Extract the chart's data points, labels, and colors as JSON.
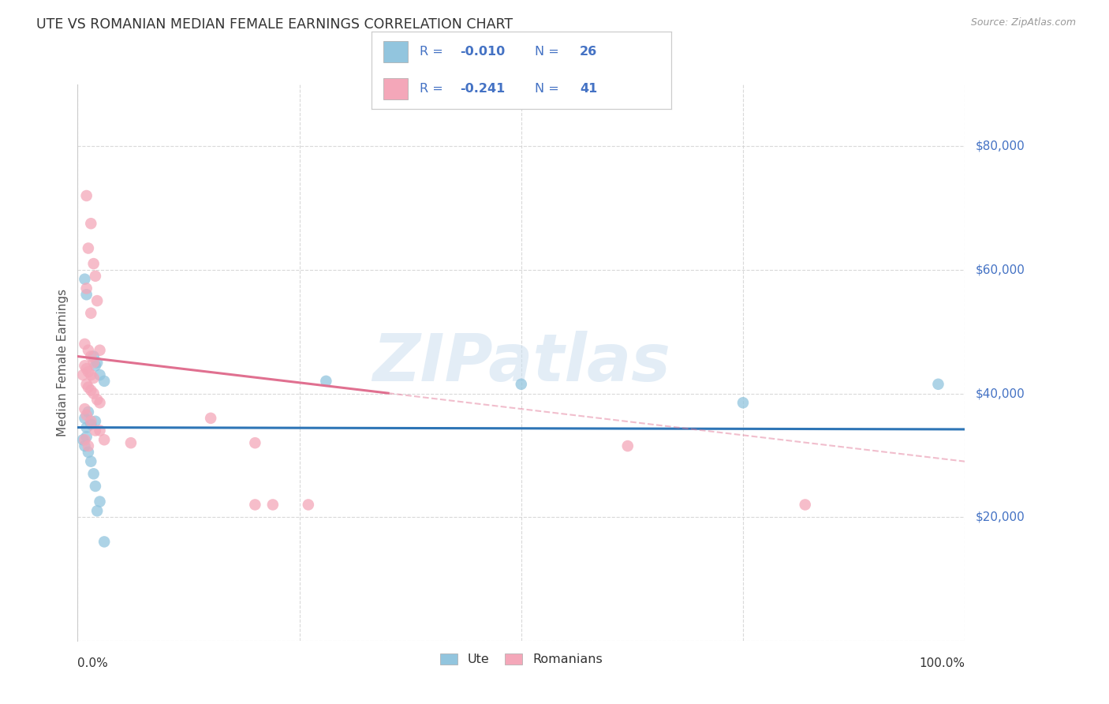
{
  "title": "UTE VS ROMANIAN MEDIAN FEMALE EARNINGS CORRELATION CHART",
  "source": "Source: ZipAtlas.com",
  "ylabel": "Median Female Earnings",
  "xlim": [
    0,
    1.0
  ],
  "ylim": [
    0,
    90000
  ],
  "ute_color": "#92c5de",
  "romanian_color": "#f4a7b9",
  "watermark_text": "ZIPatlas",
  "background_color": "#ffffff",
  "grid_color": "#d0d0d0",
  "legend_text_color": "#4472c4",
  "title_color": "#333333",
  "axis_label_color": "#555555",
  "ytick_color": "#4472c4",
  "line_ute_color": "#2e75b6",
  "line_romanian_color": "#e07090",
  "ute_r": -0.01,
  "romanian_r": -0.241,
  "ute_n": 26,
  "romanian_n": 41,
  "ute_scatter": [
    [
      0.008,
      58500
    ],
    [
      0.01,
      56000
    ],
    [
      0.018,
      46000
    ],
    [
      0.02,
      44500
    ],
    [
      0.025,
      43000
    ],
    [
      0.022,
      45000
    ],
    [
      0.03,
      42000
    ],
    [
      0.012,
      37000
    ],
    [
      0.008,
      36000
    ],
    [
      0.015,
      35000
    ],
    [
      0.01,
      34500
    ],
    [
      0.02,
      35500
    ],
    [
      0.01,
      33000
    ],
    [
      0.006,
      32500
    ],
    [
      0.008,
      31500
    ],
    [
      0.012,
      30500
    ],
    [
      0.015,
      29000
    ],
    [
      0.018,
      27000
    ],
    [
      0.02,
      25000
    ],
    [
      0.025,
      22500
    ],
    [
      0.022,
      21000
    ],
    [
      0.03,
      16000
    ],
    [
      0.28,
      42000
    ],
    [
      0.5,
      41500
    ],
    [
      0.75,
      38500
    ],
    [
      0.97,
      41500
    ]
  ],
  "romanian_scatter": [
    [
      0.01,
      72000
    ],
    [
      0.015,
      67500
    ],
    [
      0.012,
      63500
    ],
    [
      0.018,
      61000
    ],
    [
      0.02,
      59000
    ],
    [
      0.01,
      57000
    ],
    [
      0.022,
      55000
    ],
    [
      0.015,
      53000
    ],
    [
      0.008,
      48000
    ],
    [
      0.012,
      47000
    ],
    [
      0.015,
      46000
    ],
    [
      0.018,
      45000
    ],
    [
      0.025,
      47000
    ],
    [
      0.008,
      44500
    ],
    [
      0.01,
      44000
    ],
    [
      0.012,
      43500
    ],
    [
      0.015,
      43000
    ],
    [
      0.018,
      42500
    ],
    [
      0.006,
      43000
    ],
    [
      0.01,
      41500
    ],
    [
      0.012,
      41000
    ],
    [
      0.015,
      40500
    ],
    [
      0.018,
      40000
    ],
    [
      0.022,
      39000
    ],
    [
      0.025,
      38500
    ],
    [
      0.008,
      37500
    ],
    [
      0.01,
      36500
    ],
    [
      0.015,
      35500
    ],
    [
      0.02,
      34000
    ],
    [
      0.025,
      34000
    ],
    [
      0.008,
      32500
    ],
    [
      0.012,
      31500
    ],
    [
      0.03,
      32500
    ],
    [
      0.15,
      36000
    ],
    [
      0.2,
      32000
    ],
    [
      0.2,
      22000
    ],
    [
      0.22,
      22000
    ],
    [
      0.26,
      22000
    ],
    [
      0.06,
      32000
    ],
    [
      0.62,
      31500
    ],
    [
      0.82,
      22000
    ]
  ]
}
